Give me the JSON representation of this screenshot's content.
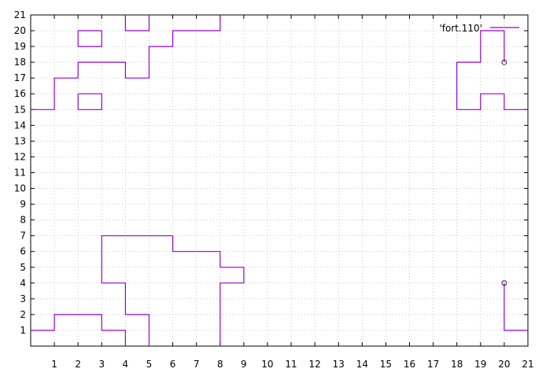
{
  "chart_data": {
    "type": "line",
    "xlim": [
      0,
      21
    ],
    "ylim": [
      0,
      21
    ],
    "x_ticks": [
      1,
      2,
      3,
      4,
      5,
      6,
      7,
      8,
      9,
      10,
      11,
      12,
      13,
      14,
      15,
      16,
      17,
      18,
      19,
      20,
      21
    ],
    "y_ticks": [
      1,
      2,
      3,
      4,
      5,
      6,
      7,
      8,
      9,
      10,
      11,
      12,
      13,
      14,
      15,
      16,
      17,
      18,
      19,
      20,
      21
    ],
    "grid": true,
    "legend_position": "top-right",
    "series": [
      {
        "name": "'fort.110'",
        "color": "#9400d3",
        "segments": [
          [
            [
              0,
              15
            ],
            [
              1,
              15
            ],
            [
              1,
              17
            ],
            [
              2,
              17
            ],
            [
              2,
              18
            ],
            [
              4,
              18
            ],
            [
              4,
              17
            ],
            [
              5,
              17
            ],
            [
              5,
              19
            ],
            [
              6,
              19
            ],
            [
              6,
              20
            ],
            [
              8,
              20
            ],
            [
              8,
              21
            ]
          ],
          [
            [
              4,
              21
            ],
            [
              4,
              20
            ],
            [
              5,
              20
            ],
            [
              5,
              21
            ]
          ],
          [
            [
              2,
              20
            ],
            [
              3,
              20
            ],
            [
              3,
              19
            ],
            [
              2,
              19
            ],
            [
              2,
              20
            ]
          ],
          [
            [
              2,
              16
            ],
            [
              3,
              16
            ],
            [
              3,
              15
            ],
            [
              2,
              15
            ],
            [
              2,
              16
            ]
          ],
          [
            [
              20,
              18
            ],
            [
              20,
              20
            ],
            [
              19,
              20
            ],
            [
              19,
              18
            ],
            [
              18,
              18
            ],
            [
              18,
              15
            ],
            [
              19,
              15
            ],
            [
              19,
              16
            ],
            [
              20,
              16
            ],
            [
              20,
              15
            ],
            [
              21,
              15
            ]
          ],
          [
            [
              0,
              1
            ],
            [
              1,
              1
            ],
            [
              1,
              2
            ],
            [
              3,
              2
            ],
            [
              3,
              1
            ],
            [
              4,
              1
            ],
            [
              4,
              0
            ]
          ],
          [
            [
              5,
              0
            ],
            [
              5,
              2
            ],
            [
              4,
              2
            ],
            [
              4,
              4
            ],
            [
              3,
              4
            ],
            [
              3,
              7
            ],
            [
              6,
              7
            ],
            [
              6,
              6
            ],
            [
              8,
              6
            ],
            [
              8,
              5
            ],
            [
              9,
              5
            ],
            [
              9,
              4
            ],
            [
              8,
              4
            ],
            [
              8,
              0
            ]
          ],
          [
            [
              20,
              4
            ],
            [
              20,
              1
            ],
            [
              21,
              1
            ]
          ]
        ],
        "markers": [
          [
            20,
            18
          ],
          [
            20,
            4
          ]
        ]
      }
    ]
  }
}
